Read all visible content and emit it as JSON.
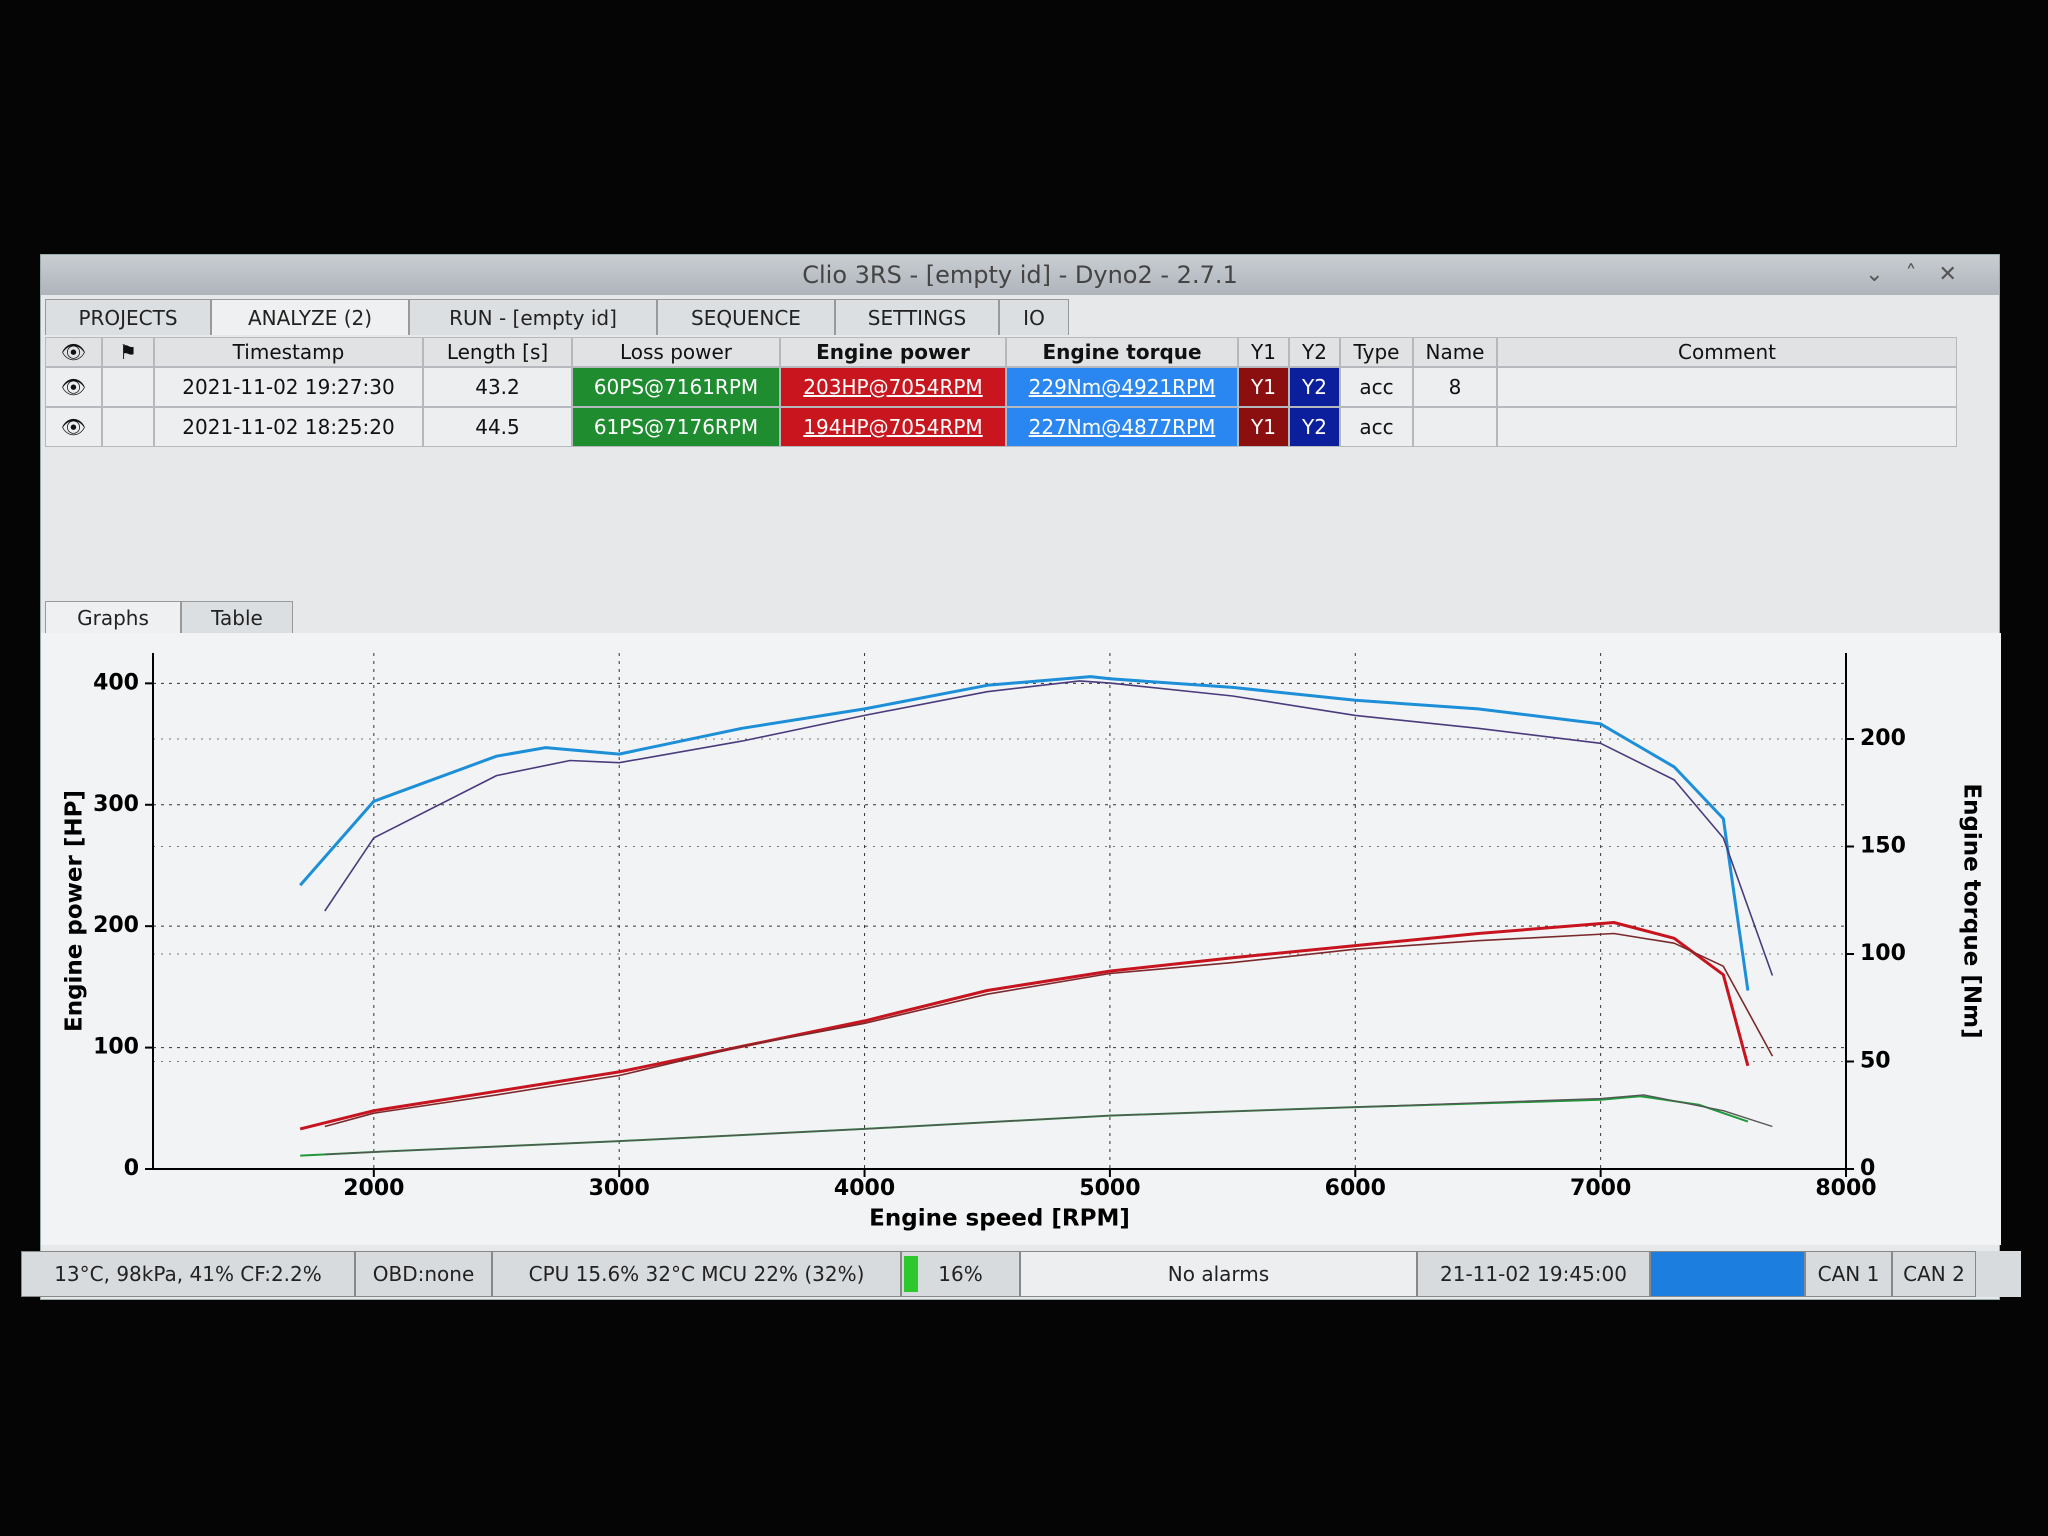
{
  "window": {
    "title": "Clio 3RS  - [empty id] - Dyno2 - 2.7.1"
  },
  "tabs": [
    "PROJECTS",
    "ANALYZE (2)",
    "RUN - [empty id]",
    "SEQUENCE",
    "SETTINGS",
    "IO"
  ],
  "table": {
    "columns": [
      "Timestamp",
      "Length [s]",
      "Loss power",
      "Engine power",
      "Engine torque",
      "Y1",
      "Y2",
      "Type",
      "Name",
      "Comment"
    ],
    "rows": [
      [
        "2021-11-02 19:27:30",
        "43.2",
        "60PS@7161RPM",
        "203HP@7054RPM",
        "229Nm@4921RPM",
        "Y1",
        "Y2",
        "acc",
        "8"
      ],
      [
        "2021-11-02 18:25:20",
        "44.5",
        "61PS@7176RPM",
        "194HP@7054RPM",
        "227Nm@4877RPM",
        "Y1",
        "Y2",
        "acc"
      ]
    ]
  },
  "subtabs": [
    "Graphs",
    "Table"
  ],
  "chart_data": {
    "type": "line",
    "x_label": "Engine speed [RPM]",
    "y_label": "Engine power [HP]",
    "y2_label": "Engine torque [Nm]",
    "xlim": [
      1100,
      8000
    ],
    "xticks": [
      2000,
      3000,
      4000,
      5000,
      6000,
      7000,
      8000
    ],
    "ylim": [
      0,
      425
    ],
    "yticks": [
      0,
      100,
      200,
      300,
      400
    ],
    "y2lim": [
      0,
      240
    ],
    "y2ticks": [
      0,
      50,
      100,
      150,
      200
    ],
    "grid": true,
    "series": [
      {
        "color": "#1c8fd8",
        "axis": "y2",
        "width": 3,
        "x": [
          1700,
          2000,
          2500,
          2700,
          3000,
          3500,
          4000,
          4500,
          4921,
          5000,
          5500,
          6000,
          6500,
          7000,
          7300,
          7500,
          7600
        ],
        "values": [
          132,
          171,
          192,
          196,
          193,
          205,
          214,
          225,
          229,
          228,
          224,
          218,
          214,
          207,
          187,
          163,
          83
        ]
      },
      {
        "color": "#4a3b7c",
        "axis": "y2",
        "width": 1.6,
        "x": [
          1800,
          2000,
          2500,
          2800,
          3000,
          3500,
          4000,
          4500,
          4877,
          5000,
          5500,
          6000,
          6500,
          7000,
          7300,
          7500,
          7700
        ],
        "values": [
          120,
          154,
          183,
          190,
          189,
          199,
          211,
          222,
          227,
          226,
          220,
          211,
          205,
          198,
          181,
          154,
          90
        ]
      },
      {
        "color": "#c8141f",
        "width": 3,
        "x": [
          1700,
          2000,
          2500,
          3000,
          3500,
          4000,
          4500,
          5000,
          5500,
          6000,
          6500,
          7054,
          7300,
          7500,
          7600
        ],
        "values": [
          33,
          48,
          64,
          80,
          101,
          122,
          147,
          163,
          174,
          184,
          194,
          203,
          190,
          160,
          85
        ]
      },
      {
        "color": "#7a2a2c",
        "width": 1.6,
        "x": [
          1800,
          2000,
          2500,
          3000,
          3500,
          4000,
          4500,
          5000,
          5500,
          6000,
          6500,
          7054,
          7300,
          7500,
          7700
        ],
        "values": [
          35,
          46,
          61,
          77,
          101,
          120,
          144,
          161,
          170,
          181,
          188,
          194,
          186,
          167,
          93
        ]
      },
      {
        "color": "#1e9a3a",
        "width": 2,
        "x": [
          1700,
          2000,
          3000,
          4000,
          5000,
          6000,
          7000,
          7161,
          7400,
          7600
        ],
        "values": [
          11,
          14,
          23,
          33,
          44,
          51,
          57,
          60,
          53,
          39
        ]
      },
      {
        "color": "#555555",
        "width": 1.4,
        "x": [
          1800,
          2000,
          3000,
          4000,
          5000,
          6000,
          7000,
          7176,
          7500,
          7700
        ],
        "values": [
          12,
          14,
          23,
          33,
          44,
          51,
          58,
          61,
          48,
          35
        ]
      }
    ]
  },
  "status": {
    "ambient": "13°C, 98kPa, 41% CF:2.2%",
    "obd": "OBD:none",
    "cpu": "CPU 15.6% 32°C MCU 22% (32%)",
    "load": "16%",
    "alarms": "No alarms",
    "clock": "21-11-02 19:45:00",
    "can1": "CAN 1",
    "can2": "CAN 2"
  }
}
